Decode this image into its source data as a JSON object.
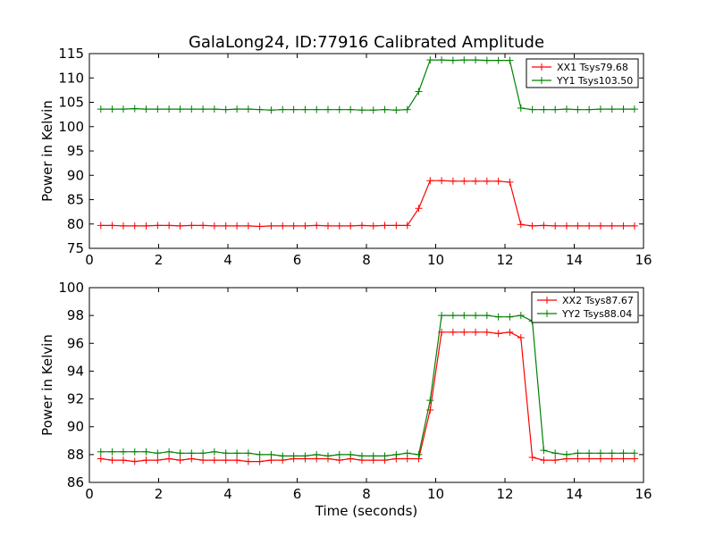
{
  "figure_title": "GalaLong24, ID:77916 Calibrated Amplitude",
  "chart_data": [
    {
      "type": "line",
      "title": "GalaLong24, ID:77916 Calibrated Amplitude",
      "xlabel": "",
      "ylabel": "Power in Kelvin",
      "xlim": [
        0,
        16
      ],
      "ylim": [
        75,
        115
      ],
      "xticks": [
        "0",
        "2",
        "4",
        "6",
        "8",
        "10",
        "12",
        "14",
        "16"
      ],
      "yticks": [
        "75",
        "80",
        "85",
        "90",
        "95",
        "100",
        "105",
        "110",
        "115"
      ],
      "grid": false,
      "legend_position": "top-right",
      "x": [
        0.33,
        0.66,
        0.98,
        1.31,
        1.64,
        1.97,
        2.3,
        2.62,
        2.95,
        3.28,
        3.61,
        3.94,
        4.26,
        4.59,
        4.92,
        5.25,
        5.58,
        5.9,
        6.23,
        6.56,
        6.89,
        7.22,
        7.54,
        7.87,
        8.2,
        8.53,
        8.86,
        9.18,
        9.51,
        9.84,
        10.17,
        10.5,
        10.82,
        11.15,
        11.48,
        11.81,
        12.14,
        12.46,
        12.79,
        13.12,
        13.45,
        13.78,
        14.1,
        14.43,
        14.76,
        15.09,
        15.42,
        15.74
      ],
      "series": [
        {
          "name": "XX1 Tsys79.68",
          "color": "#ff0000",
          "values": [
            79.7,
            79.7,
            79.6,
            79.6,
            79.6,
            79.7,
            79.7,
            79.6,
            79.7,
            79.7,
            79.6,
            79.6,
            79.6,
            79.6,
            79.5,
            79.6,
            79.6,
            79.6,
            79.6,
            79.7,
            79.6,
            79.6,
            79.6,
            79.7,
            79.6,
            79.7,
            79.7,
            79.7,
            83.2,
            88.9,
            88.9,
            88.8,
            88.8,
            88.8,
            88.8,
            88.8,
            88.6,
            79.9,
            79.6,
            79.7,
            79.6,
            79.6,
            79.6,
            79.6,
            79.6,
            79.6,
            79.6,
            79.6
          ]
        },
        {
          "name": "YY1 Tsys103.50",
          "color": "#008000",
          "values": [
            103.6,
            103.6,
            103.6,
            103.7,
            103.6,
            103.6,
            103.6,
            103.6,
            103.6,
            103.6,
            103.6,
            103.5,
            103.6,
            103.6,
            103.5,
            103.4,
            103.5,
            103.5,
            103.5,
            103.5,
            103.5,
            103.5,
            103.5,
            103.4,
            103.4,
            103.5,
            103.4,
            103.5,
            107.2,
            113.7,
            113.7,
            113.6,
            113.7,
            113.7,
            113.6,
            113.6,
            113.6,
            103.8,
            103.5,
            103.5,
            103.5,
            103.6,
            103.5,
            103.5,
            103.6,
            103.6,
            103.6,
            103.6
          ]
        }
      ]
    },
    {
      "type": "line",
      "title": "",
      "xlabel": "Time (seconds)",
      "ylabel": "Power in Kelvin",
      "xlim": [
        0,
        16
      ],
      "ylim": [
        86,
        100
      ],
      "xticks": [
        "0",
        "2",
        "4",
        "6",
        "8",
        "10",
        "12",
        "14",
        "16"
      ],
      "yticks": [
        "86",
        "88",
        "90",
        "92",
        "94",
        "96",
        "98",
        "100"
      ],
      "grid": false,
      "legend_position": "top-right",
      "x": [
        0.33,
        0.66,
        0.98,
        1.31,
        1.64,
        1.97,
        2.3,
        2.62,
        2.95,
        3.28,
        3.61,
        3.94,
        4.26,
        4.59,
        4.92,
        5.25,
        5.58,
        5.9,
        6.23,
        6.56,
        6.89,
        7.22,
        7.54,
        7.87,
        8.2,
        8.53,
        8.86,
        9.18,
        9.51,
        9.84,
        10.17,
        10.5,
        10.82,
        11.15,
        11.48,
        11.81,
        12.14,
        12.46,
        12.79,
        13.12,
        13.45,
        13.78,
        14.1,
        14.43,
        14.76,
        15.09,
        15.42,
        15.74
      ],
      "series": [
        {
          "name": "XX2 Tsys87.67",
          "color": "#ff0000",
          "values": [
            87.7,
            87.6,
            87.6,
            87.5,
            87.6,
            87.6,
            87.7,
            87.6,
            87.7,
            87.6,
            87.6,
            87.6,
            87.6,
            87.5,
            87.5,
            87.6,
            87.6,
            87.7,
            87.7,
            87.7,
            87.7,
            87.6,
            87.7,
            87.6,
            87.6,
            87.6,
            87.7,
            87.7,
            87.7,
            91.2,
            96.8,
            96.8,
            96.8,
            96.8,
            96.8,
            96.7,
            96.8,
            96.4,
            87.8,
            87.6,
            87.6,
            87.7,
            87.7,
            87.7,
            87.7,
            87.7,
            87.7,
            87.7
          ]
        },
        {
          "name": "YY2 Tsys88.04",
          "color": "#008000",
          "values": [
            88.2,
            88.2,
            88.2,
            88.2,
            88.2,
            88.1,
            88.2,
            88.1,
            88.1,
            88.1,
            88.2,
            88.1,
            88.1,
            88.1,
            88.0,
            88.0,
            87.9,
            87.9,
            87.9,
            88.0,
            87.9,
            88.0,
            88.0,
            87.9,
            87.9,
            87.9,
            88.0,
            88.1,
            88.0,
            91.9,
            98.0,
            98.0,
            98.0,
            98.0,
            98.0,
            97.9,
            97.9,
            98.0,
            97.6,
            88.3,
            88.1,
            88.0,
            88.1,
            88.1,
            88.1,
            88.1,
            88.1,
            88.1
          ]
        }
      ]
    }
  ]
}
